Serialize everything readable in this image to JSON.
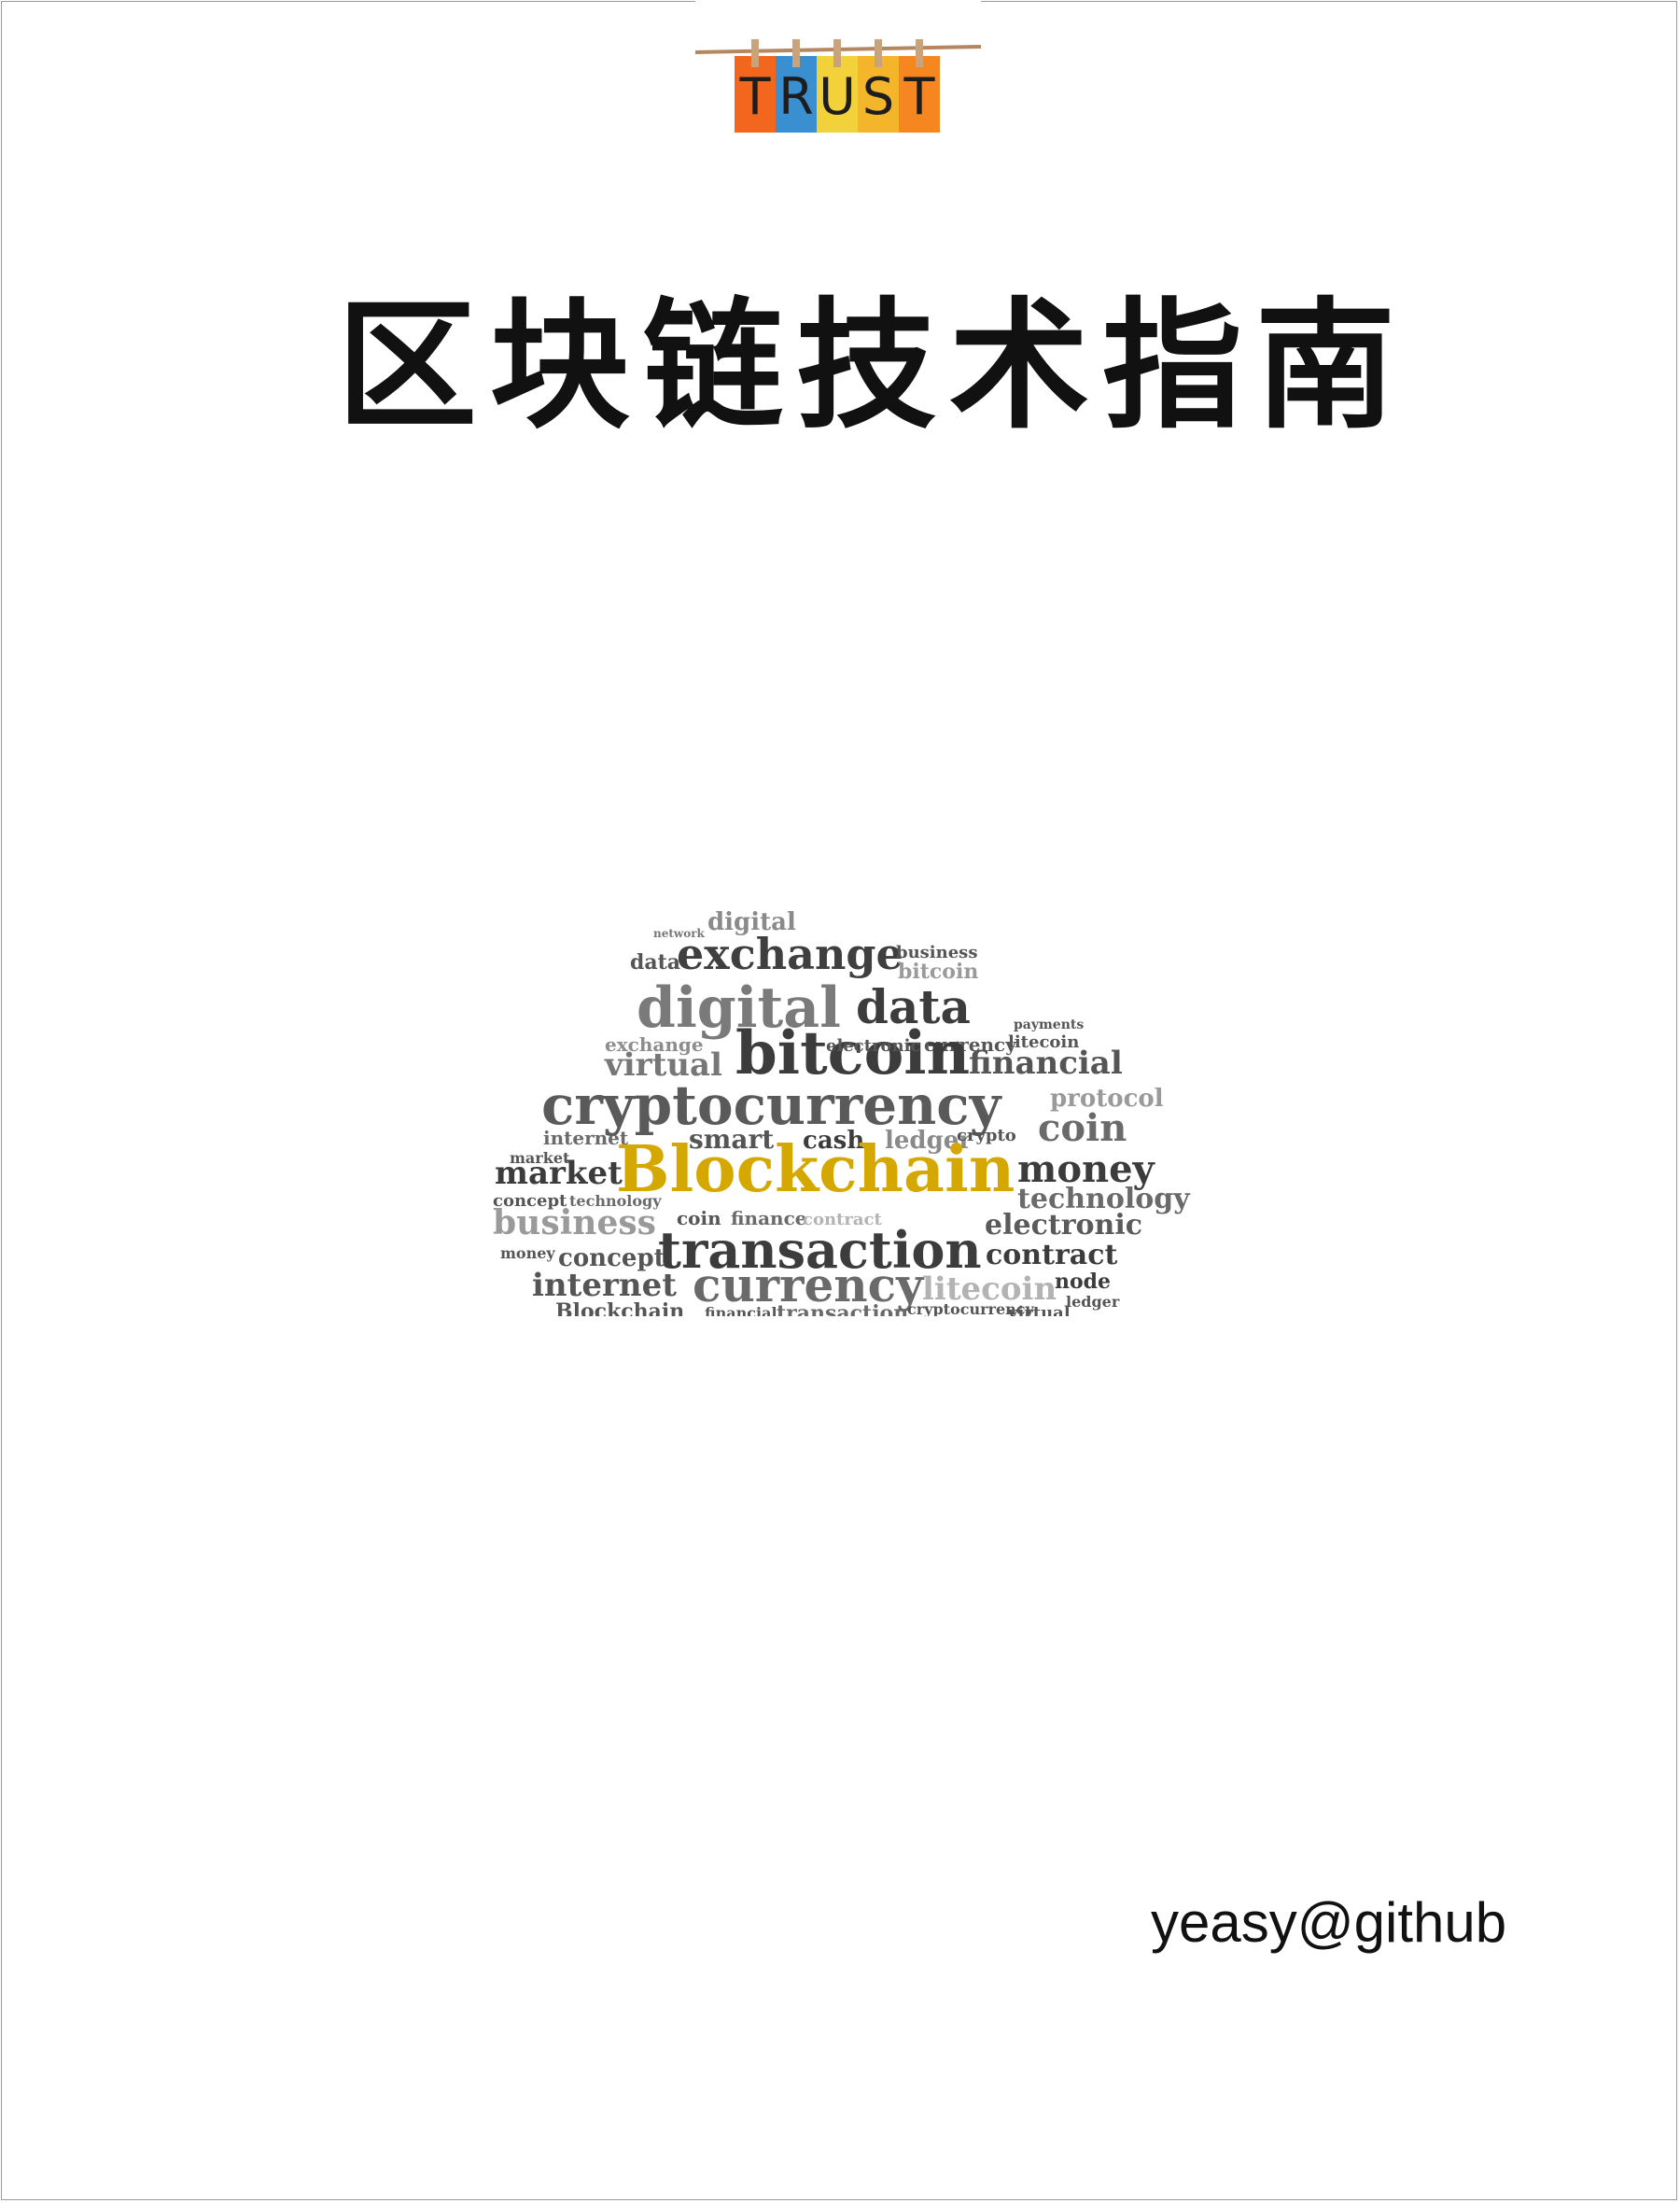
{
  "logo": {
    "letters": [
      "T",
      "R",
      "U",
      "S",
      "T"
    ],
    "colors": [
      "#f2661e",
      "#3a8fd0",
      "#f3d13a",
      "#f4b52a",
      "#f6861f"
    ]
  },
  "title": "区块链技术指南",
  "wordcloud": {
    "highlight_color": "#d4a800",
    "words": {
      "w1": "digital",
      "w2": "exchange",
      "w3": "business",
      "w4": "data",
      "w5": "bitcoin",
      "w6": "digital",
      "w7": "data",
      "w8": "exchange",
      "w9": "currency",
      "w10": "bitcoin",
      "w11": "virtual",
      "w12": "financial",
      "w13": "litecoin",
      "w14": "cryptocurrency",
      "w15": "protocol",
      "w16": "coin",
      "w17": "internet",
      "w18": "smart",
      "w19": "cash",
      "w20": "ledger",
      "w21": "crypto",
      "w22": "market",
      "w23": "Blockchain",
      "w24": "money",
      "w25": "technology",
      "w26": "concept",
      "w27": "business",
      "w28": "coin",
      "w29": "finance",
      "w30": "contract",
      "w31": "electronic",
      "w32": "transaction",
      "w33": "money",
      "w34": "concept",
      "w35": "contract",
      "w36": "internet",
      "w37": "currency",
      "w38": "litecoin",
      "w39": "node",
      "w40": "Blockchain",
      "w41": "financial",
      "w42": "transaction",
      "w43": "cryptocurrency",
      "w44": "virtual",
      "w45": "ledger",
      "w46": "market",
      "w47": "technology",
      "w48": "payments",
      "w49": "network",
      "w50": "electronic"
    }
  },
  "author": "yeasy@github"
}
